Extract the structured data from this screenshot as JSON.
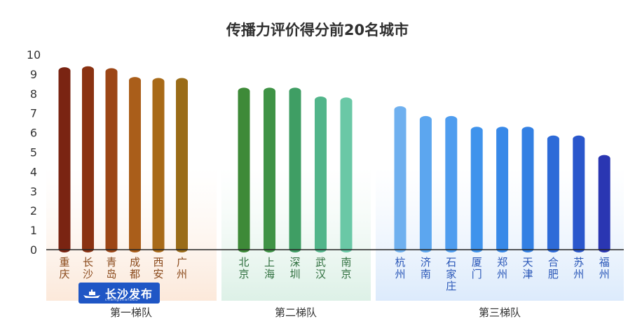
{
  "chart_data": {
    "type": "bar",
    "title": "传播力评价得分前20名城市",
    "ylim": [
      0,
      10
    ],
    "yticks": [
      0,
      1,
      2,
      3,
      4,
      5,
      6,
      7,
      8,
      9,
      10
    ],
    "groups": [
      {
        "name": "第一梯队",
        "cities": [
          "重庆",
          "长沙",
          "青岛",
          "成都",
          "西安",
          "广州"
        ],
        "values": [
          9.35,
          9.4,
          9.3,
          8.85,
          8.8,
          8.8
        ],
        "colors": [
          "#7a2412",
          "#8a3212",
          "#9c4616",
          "#aa5e1a",
          "#a86a18",
          "#9a6c18"
        ]
      },
      {
        "name": "第二梯队",
        "cities": [
          "北京",
          "上海",
          "深圳",
          "武汉",
          "南京"
        ],
        "values": [
          8.3,
          8.3,
          8.3,
          7.85,
          7.8
        ],
        "colors": [
          "#3e8a38",
          "#3f9346",
          "#3f9e64",
          "#52b58a",
          "#6ac8a6"
        ]
      },
      {
        "name": "第三梯队",
        "cities": [
          "杭州",
          "济南",
          "石家庄",
          "厦门",
          "郑州",
          "天津",
          "合肥",
          "苏州",
          "福州"
        ],
        "values": [
          7.35,
          6.85,
          6.85,
          6.3,
          6.3,
          6.3,
          5.85,
          5.85,
          4.85
        ],
        "colors": [
          "#6fb0ef",
          "#5ca6ef",
          "#4f9def",
          "#3f93ec",
          "#3889e8",
          "#3380e3",
          "#2e6bd8",
          "#2a57cc",
          "#2a36b2"
        ]
      }
    ]
  },
  "logo": {
    "text": "长沙发布",
    "subtext": "changshafabu"
  }
}
